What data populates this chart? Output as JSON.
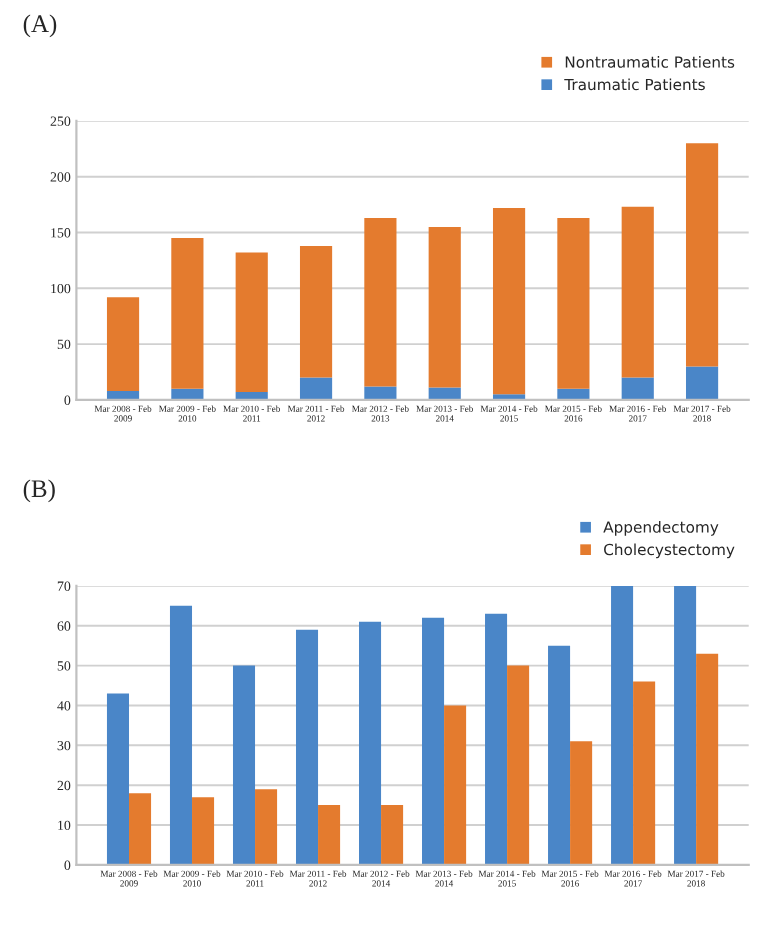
{
  "chart_data": [
    {
      "type": "bar",
      "title": "(A)",
      "stacked": true,
      "categories": [
        "Mar 2008 - Feb\n2009",
        "Mar 2009 - Feb\n2010",
        "Mar 2010 - Feb\n2011",
        "Mar 2011 - Feb\n2012",
        "Mar 2012 - Feb\n2013",
        "Mar 2013 - Feb\n2014",
        "Mar 2014 - Feb\n2015",
        "Mar 2015 - Feb\n2016",
        "Mar 2016 - Feb\n2017",
        "Mar 2017 - Feb\n2018"
      ],
      "series": [
        {
          "name": "Traumatic Patients",
          "color": "#4a86c8",
          "values": [
            8,
            10,
            7,
            20,
            12,
            11,
            5,
            10,
            20,
            30
          ]
        },
        {
          "name": "Nontraumatic Patients",
          "color": "#e47b2e",
          "values": [
            84,
            135,
            125,
            118,
            151,
            144,
            167,
            153,
            153,
            200
          ]
        }
      ],
      "ylim": [
        0,
        250
      ],
      "yticks": [
        0,
        50,
        100,
        150,
        200,
        250
      ],
      "grid": "y",
      "legend": "top right"
    },
    {
      "type": "bar",
      "title": "(B)",
      "categories": [
        "Mar 2008 - Feb\n2009",
        "Mar 2009 - Feb\n2010",
        "Mar 2010 - Feb\n2011",
        "Mar 2011 - Feb\n2012",
        "Mar 2012 - Feb\n2014",
        "Mar 2013 - Feb\n2014",
        "Mar 2014 - Feb\n2015",
        "Mar 2015 - Feb\n2016",
        "Mar 2016 - Feb\n2017",
        "Mar 2017 - Feb\n2018"
      ],
      "series": [
        {
          "name": "Appendectomy",
          "color": "#4a86c8",
          "values": [
            43,
            65,
            50,
            59,
            61,
            62,
            63,
            55,
            70,
            70
          ]
        },
        {
          "name": "Cholecystectomy",
          "color": "#e47b2e",
          "values": [
            18,
            17,
            19,
            15,
            15,
            40,
            50,
            31,
            46,
            53
          ]
        }
      ],
      "ylim": [
        0,
        70
      ],
      "yticks": [
        0,
        10,
        20,
        30,
        40,
        50,
        60,
        70
      ],
      "grid": "y",
      "legend": "top right"
    }
  ]
}
